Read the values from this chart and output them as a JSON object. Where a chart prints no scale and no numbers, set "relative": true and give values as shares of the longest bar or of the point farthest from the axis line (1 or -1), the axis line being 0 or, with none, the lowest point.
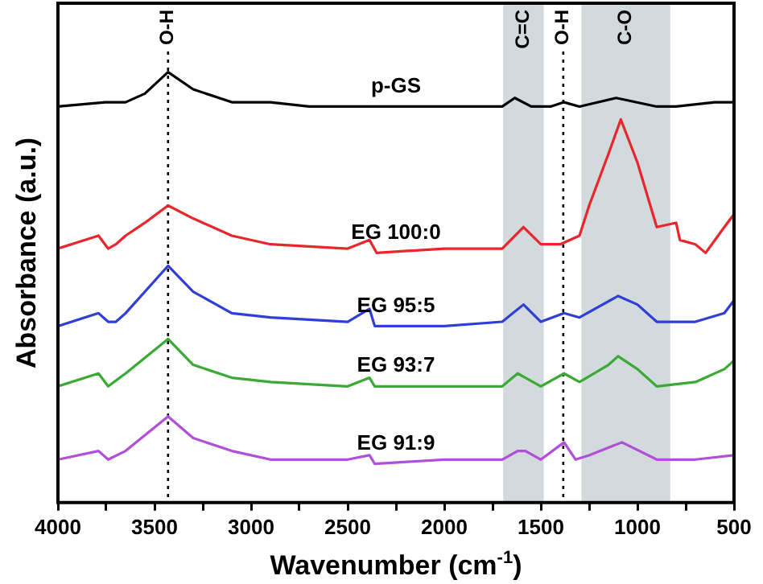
{
  "chart_data": {
    "type": "line",
    "xlabel": "Wavenumber (cm$^{-1}$)",
    "ylabel": "Absorbance (a.u.)",
    "relative": true,
    "xlim": [
      4000,
      500
    ],
    "xticks": [
      4000,
      {
        "value": 3750,
        "label": null
      },
      3500,
      {
        "value": 3250,
        "label": null
      },
      3000,
      {
        "value": 2750,
        "label": null
      },
      2500,
      {
        "value": 2250,
        "label": null
      },
      2000,
      {
        "value": 1750,
        "label": null
      },
      1500,
      {
        "value": 1250,
        "label": null
      },
      1000,
      {
        "value": 750,
        "label": null
      },
      500
    ],
    "grid": false,
    "legend": false,
    "marker": "none",
    "line_style": "solid",
    "bands": [
      {
        "axis": "x",
        "from": 1695,
        "to": 1485,
        "label": "C=C",
        "color": "#d3dadd"
      },
      {
        "axis": "x",
        "from": 1290,
        "to": 830,
        "label": "C-O",
        "color": "#d3dadd"
      }
    ],
    "ref_lines": [
      {
        "axis": "x",
        "value": 3430,
        "label": "O-H",
        "line_style": "dotted",
        "color": "#000000"
      },
      {
        "axis": "x",
        "value": 1384,
        "label": "O-H",
        "line_style": "dotted",
        "color": "#000000"
      }
    ],
    "series": [
      {
        "name": "p-GS",
        "color": "#000000",
        "x": [
          4000,
          3755,
          3650,
          3550,
          3430,
          3300,
          3100,
          2900,
          2700,
          2000,
          1700,
          1635,
          1550,
          1450,
          1380,
          1300,
          1110,
          900,
          800,
          600,
          500
        ],
        "values": [
          0.92,
          0.93,
          0.93,
          0.95,
          1.0,
          0.96,
          0.93,
          0.93,
          0.92,
          0.92,
          0.92,
          0.94,
          0.92,
          0.92,
          0.93,
          0.92,
          0.94,
          0.92,
          0.92,
          0.93,
          0.93
        ]
      },
      {
        "name": "EG 100:0",
        "color": "#e8262b",
        "x": [
          4000,
          3790,
          3740,
          3700,
          3650,
          3550,
          3430,
          3300,
          3100,
          2900,
          2500,
          2387,
          2350,
          2000,
          1700,
          1590,
          1500,
          1400,
          1300,
          1250,
          1150,
          1086,
          1000,
          900,
          800,
          780,
          700,
          647,
          550,
          500
        ],
        "values": [
          0.59,
          0.62,
          0.59,
          0.6,
          0.62,
          0.65,
          0.69,
          0.66,
          0.62,
          0.6,
          0.59,
          0.61,
          0.58,
          0.59,
          0.59,
          0.64,
          0.6,
          0.6,
          0.62,
          0.69,
          0.81,
          0.89,
          0.79,
          0.64,
          0.65,
          0.61,
          0.6,
          0.58,
          0.64,
          0.67
        ]
      },
      {
        "name": "EG 95:5",
        "color": "#2f3fd6",
        "x": [
          4000,
          3790,
          3740,
          3700,
          3650,
          3430,
          3300,
          3100,
          2900,
          2500,
          2387,
          2360,
          2000,
          1700,
          1590,
          1500,
          1380,
          1300,
          1100,
          1000,
          900,
          700,
          550,
          500
        ],
        "values": [
          0.41,
          0.44,
          0.42,
          0.42,
          0.44,
          0.55,
          0.49,
          0.44,
          0.43,
          0.42,
          0.45,
          0.41,
          0.41,
          0.42,
          0.46,
          0.42,
          0.44,
          0.43,
          0.48,
          0.46,
          0.42,
          0.42,
          0.44,
          0.47
        ]
      },
      {
        "name": "EG 93:7",
        "color": "#3aaa35",
        "x": [
          4000,
          3790,
          3740,
          3650,
          3430,
          3300,
          3100,
          2900,
          2500,
          2387,
          2360,
          2000,
          1700,
          1620,
          1580,
          1500,
          1380,
          1300,
          1150,
          1100,
          1000,
          900,
          700,
          550,
          500
        ],
        "values": [
          0.27,
          0.3,
          0.27,
          0.3,
          0.38,
          0.32,
          0.29,
          0.28,
          0.27,
          0.29,
          0.27,
          0.27,
          0.27,
          0.3,
          0.29,
          0.27,
          0.3,
          0.28,
          0.32,
          0.34,
          0.31,
          0.27,
          0.28,
          0.31,
          0.33
        ]
      },
      {
        "name": "EG 91:9",
        "color": "#b24fd8",
        "x": [
          4000,
          3790,
          3740,
          3650,
          3430,
          3300,
          3100,
          2900,
          2500,
          2387,
          2360,
          2000,
          1700,
          1620,
          1580,
          1500,
          1380,
          1320,
          1250,
          1080,
          900,
          700,
          500
        ],
        "values": [
          0.1,
          0.12,
          0.1,
          0.12,
          0.2,
          0.15,
          0.12,
          0.1,
          0.1,
          0.11,
          0.09,
          0.1,
          0.1,
          0.12,
          0.12,
          0.1,
          0.14,
          0.1,
          0.11,
          0.14,
          0.1,
          0.1,
          0.11
        ]
      }
    ]
  }
}
